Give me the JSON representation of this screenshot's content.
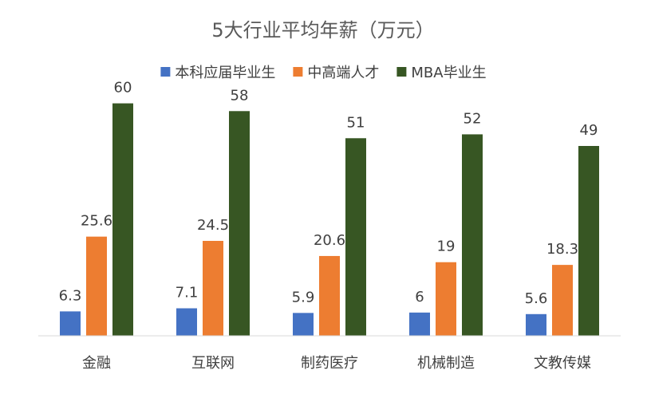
{
  "chart_data": {
    "type": "bar",
    "title": "5大行业平均年薪（万元）",
    "categories": [
      "金融",
      "互联网",
      "制药医疗",
      "机械制造",
      "文教传媒"
    ],
    "series": [
      {
        "name": "本科应届毕业生",
        "color": "#4472C4",
        "values": [
          6.3,
          7.1,
          5.9,
          6,
          5.6
        ]
      },
      {
        "name": "中高端人才",
        "color": "#ED7D31",
        "values": [
          25.6,
          24.5,
          20.6,
          19,
          18.3
        ]
      },
      {
        "name": "MBA毕业生",
        "color": "#375623",
        "values": [
          60,
          58,
          51,
          52,
          49
        ]
      }
    ],
    "ylim": [
      0,
      70
    ],
    "grid": false,
    "legend_position": "top",
    "data_labels": true
  }
}
